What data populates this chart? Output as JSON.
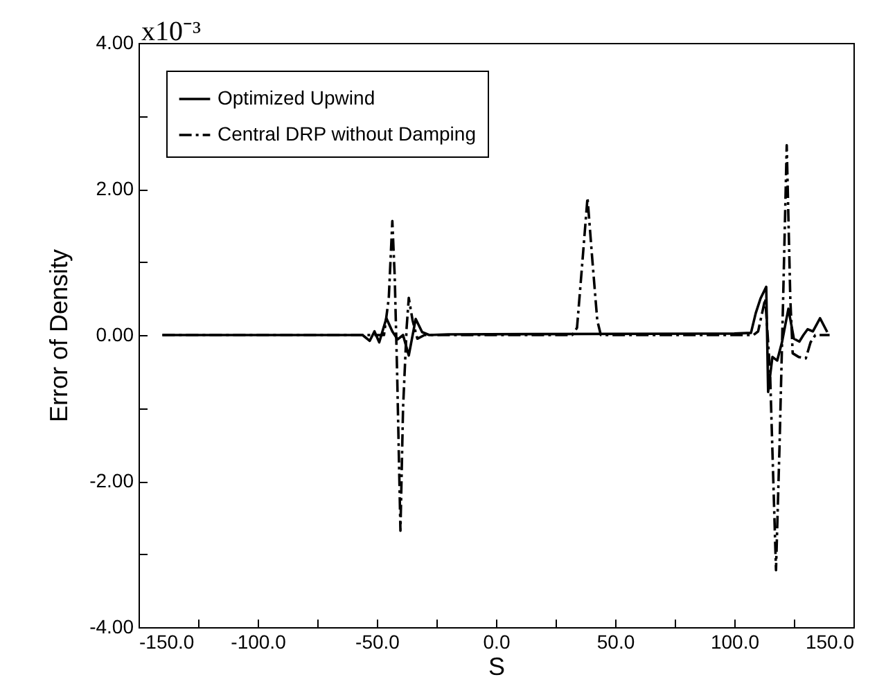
{
  "chart_data": {
    "type": "line",
    "xlabel": "S",
    "ylabel": "Error of Density",
    "annotations": [
      "x10⁻³"
    ],
    "xlim": [
      -150,
      150
    ],
    "ylim": [
      -4,
      4
    ],
    "xticks": [
      {
        "value": -150,
        "label": "-150.0"
      },
      {
        "value": -125,
        "label": null
      },
      {
        "value": -100,
        "label": "-100.0"
      },
      {
        "value": -75,
        "label": null
      },
      {
        "value": -50,
        "label": "-50.0"
      },
      {
        "value": -25,
        "label": null
      },
      {
        "value": 0,
        "label": "0.0"
      },
      {
        "value": 25,
        "label": null
      },
      {
        "value": 50,
        "label": "50.0"
      },
      {
        "value": 75,
        "label": null
      },
      {
        "value": 100,
        "label": "100.0"
      },
      {
        "value": 125,
        "label": null
      },
      {
        "value": 150,
        "label": "150.0"
      }
    ],
    "yticks": [
      {
        "value": -4,
        "label": "-4.00"
      },
      {
        "value": -3,
        "label": null
      },
      {
        "value": -2,
        "label": "-2.00"
      },
      {
        "value": -1,
        "label": null
      },
      {
        "value": 0,
        "label": "0.00"
      },
      {
        "value": 1,
        "label": null
      },
      {
        "value": 2,
        "label": "2.00"
      },
      {
        "value": 3,
        "label": null
      },
      {
        "value": 4,
        "label": "4.00"
      }
    ],
    "grid": false,
    "legend": "top left",
    "marker": "none",
    "series": [
      {
        "name": "Optimized Upwind",
        "color": "#000000",
        "line_style": "solid",
        "x": [
          -140,
          -56,
          -53,
          -51,
          -49,
          -46,
          -43.5,
          -41.3,
          -39,
          -36.6,
          -33.7,
          -31,
          -28,
          -20,
          100,
          107,
          109,
          111,
          113.4,
          114.2,
          116,
          118,
          120,
          122.7,
          125,
          127.3,
          129,
          130.8,
          133,
          136,
          139
        ],
        "values": [
          0,
          0,
          -0.08,
          0.05,
          -0.1,
          0.23,
          0.05,
          -0.06,
          0,
          -0.28,
          0.22,
          0.04,
          0,
          0.01,
          0.02,
          0.03,
          0.3,
          0.5,
          0.66,
          -0.78,
          -0.3,
          -0.35,
          -0.1,
          0.36,
          -0.05,
          -0.09,
          0,
          0.08,
          0.05,
          0.23,
          0.04
        ]
      },
      {
        "name": "Central DRP without Damping",
        "color": "#000000",
        "line_style": "dashed",
        "x": [
          -140,
          -47,
          -45,
          -43.5,
          -42.5,
          -41.5,
          -40.1,
          -39,
          -37.5,
          -36.6,
          -35,
          -33,
          -30,
          32,
          34,
          36,
          38.4,
          40.5,
          42.5,
          44,
          108,
          110,
          113,
          115,
          117.5,
          119,
          120.5,
          122,
          123.5,
          124.5,
          127,
          130,
          132,
          134,
          140
        ],
        "values": [
          0,
          0,
          0.5,
          1.56,
          0.8,
          -0.5,
          -2.68,
          -1,
          0.1,
          0.51,
          0.2,
          -0.05,
          0,
          0,
          0.1,
          0.9,
          1.88,
          1,
          0.2,
          0,
          0,
          0.05,
          0.5,
          -0.5,
          -3.22,
          -1.5,
          0.5,
          2.6,
          0.5,
          -0.25,
          -0.3,
          -0.32,
          -0.1,
          0,
          0
        ]
      }
    ]
  }
}
